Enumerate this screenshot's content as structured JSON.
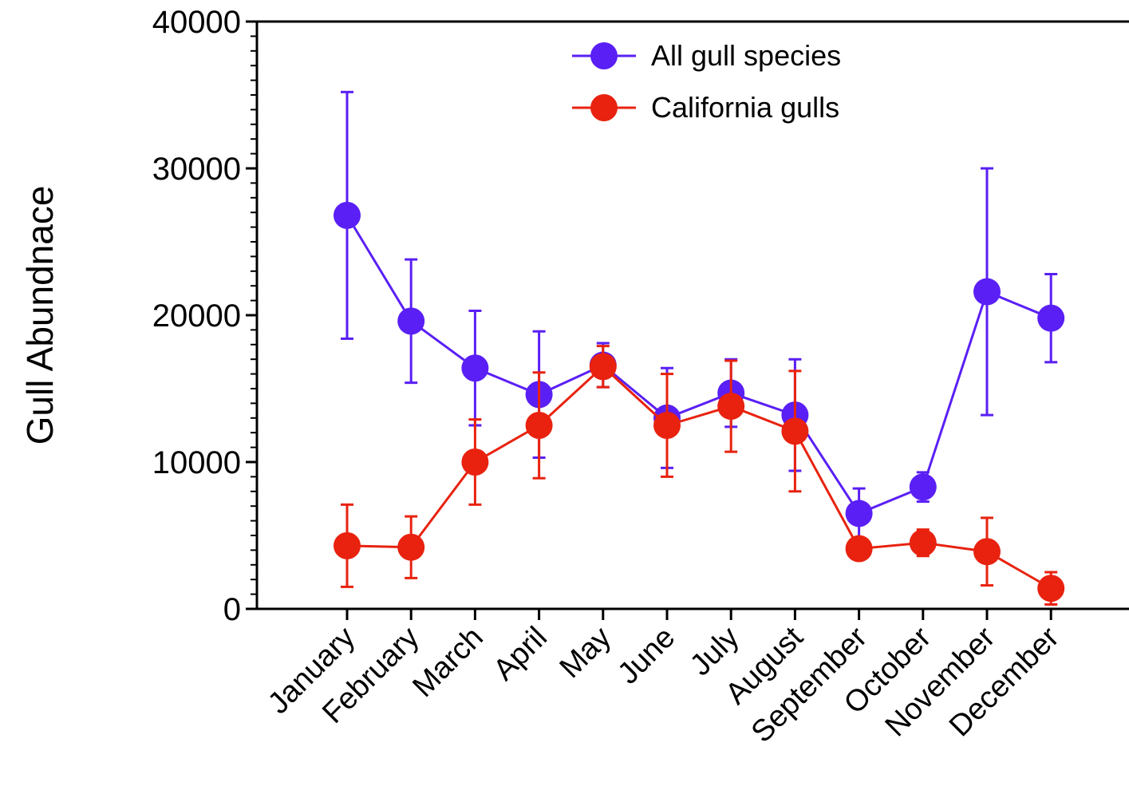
{
  "chart_data": {
    "type": "line",
    "title": "",
    "xlabel": "",
    "ylabel": "Gull Abundnace",
    "ylim": [
      0,
      40000
    ],
    "yticks": [
      0,
      10000,
      20000,
      30000,
      40000
    ],
    "categories": [
      "January",
      "February",
      "March",
      "April",
      "May",
      "June",
      "July",
      "August",
      "September",
      "October",
      "November",
      "December"
    ],
    "legend_position": "top-center",
    "grid": false,
    "series": [
      {
        "name": "All gull species",
        "color": "#5a1ff5",
        "values": [
          26800,
          19600,
          16400,
          14600,
          16600,
          13000,
          14700,
          13200,
          6500,
          8300,
          21600,
          19800
        ],
        "error": [
          8400,
          4200,
          3900,
          4300,
          1500,
          3400,
          2300,
          3800,
          1700,
          1000,
          8400,
          3000
        ]
      },
      {
        "name": "California gulls",
        "color": "#e8220f",
        "values": [
          4300,
          4200,
          10000,
          12500,
          16500,
          12500,
          13800,
          12100,
          4100,
          4500,
          3900,
          1400
        ],
        "error": [
          2800,
          2100,
          2900,
          3600,
          1400,
          3500,
          3100,
          4100,
          400,
          900,
          2300,
          1100
        ]
      }
    ]
  }
}
